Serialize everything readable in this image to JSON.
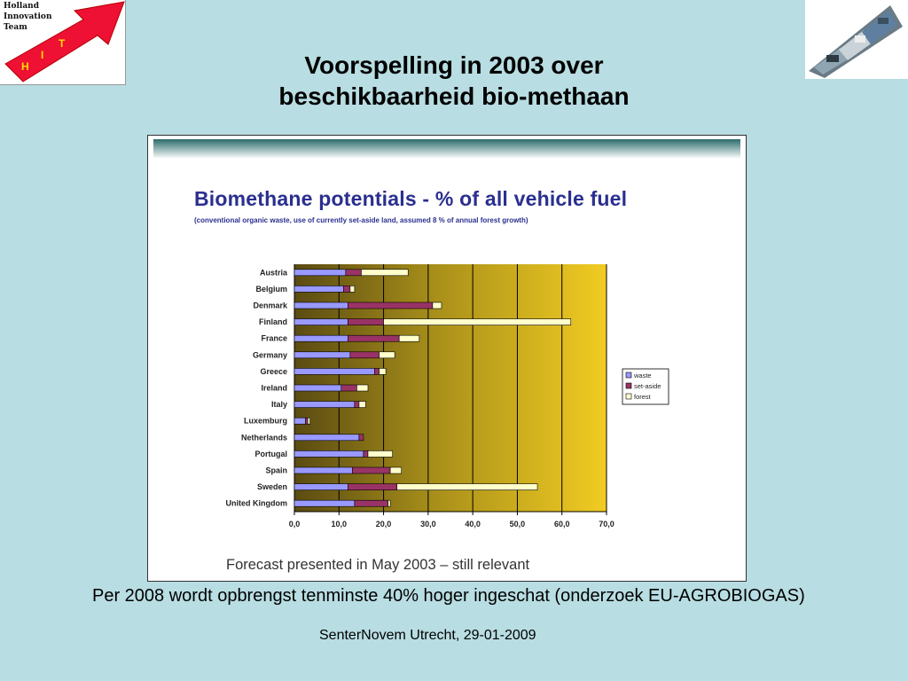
{
  "header": {
    "logo_text": "Holland\nInnovation\nTeam",
    "logo_letters": [
      "H",
      "I",
      "T"
    ],
    "title_line1": "Voorspelling in 2003 over",
    "title_line2": "beschikbaarheid bio-methaan"
  },
  "colors": {
    "background": "#b8dde2",
    "waste": "#9999ff",
    "set_aside": "#993366",
    "forest": "#ffffcc",
    "chart_title": "#2a2f8f"
  },
  "chart_data": {
    "type": "bar",
    "orientation": "horizontal",
    "stacked": true,
    "title": "Biomethane potentials - % of all vehicle fuel",
    "subtitle": "(conventional organic waste, use of currently set-aside land, assumed 8 % of annual forest growth)",
    "categories": [
      "Austria",
      "Belgium",
      "Denmark",
      "Finland",
      "France",
      "Germany",
      "Greece",
      "Ireland",
      "Italy",
      "Luxemburg",
      "Netherlands",
      "Portugal",
      "Spain",
      "Sweden",
      "United Kingdom"
    ],
    "series": [
      {
        "name": "waste",
        "values": [
          11.5,
          11.0,
          12.0,
          12.0,
          12.0,
          12.5,
          18.0,
          10.5,
          13.5,
          2.5,
          14.5,
          15.5,
          13.0,
          12.0,
          13.5
        ]
      },
      {
        "name": "set-aside",
        "values": [
          3.5,
          1.5,
          19.0,
          8.0,
          11.5,
          6.5,
          1.0,
          3.5,
          1.0,
          0.5,
          1.0,
          1.0,
          8.5,
          11.0,
          7.5
        ]
      },
      {
        "name": "forest",
        "values": [
          10.5,
          1.0,
          2.0,
          42.0,
          4.5,
          3.5,
          1.5,
          2.5,
          1.5,
          0.5,
          0.0,
          5.5,
          2.5,
          31.5,
          0.5
        ]
      }
    ],
    "xlim": [
      0,
      70
    ],
    "xticks": [
      "0,0",
      "10,0",
      "20,0",
      "30,0",
      "40,0",
      "50,0",
      "60,0",
      "70,0"
    ],
    "legend": "right",
    "grid": true
  },
  "slide": {
    "forecast_note": "Forecast presented in May 2003 – still relevant"
  },
  "note": "Per 2008 wordt opbrengst tenminste 40% hoger ingeschat (onderzoek EU-AGROBIOGAS)",
  "footer": "SenterNovem Utrecht, 29-01-2009"
}
